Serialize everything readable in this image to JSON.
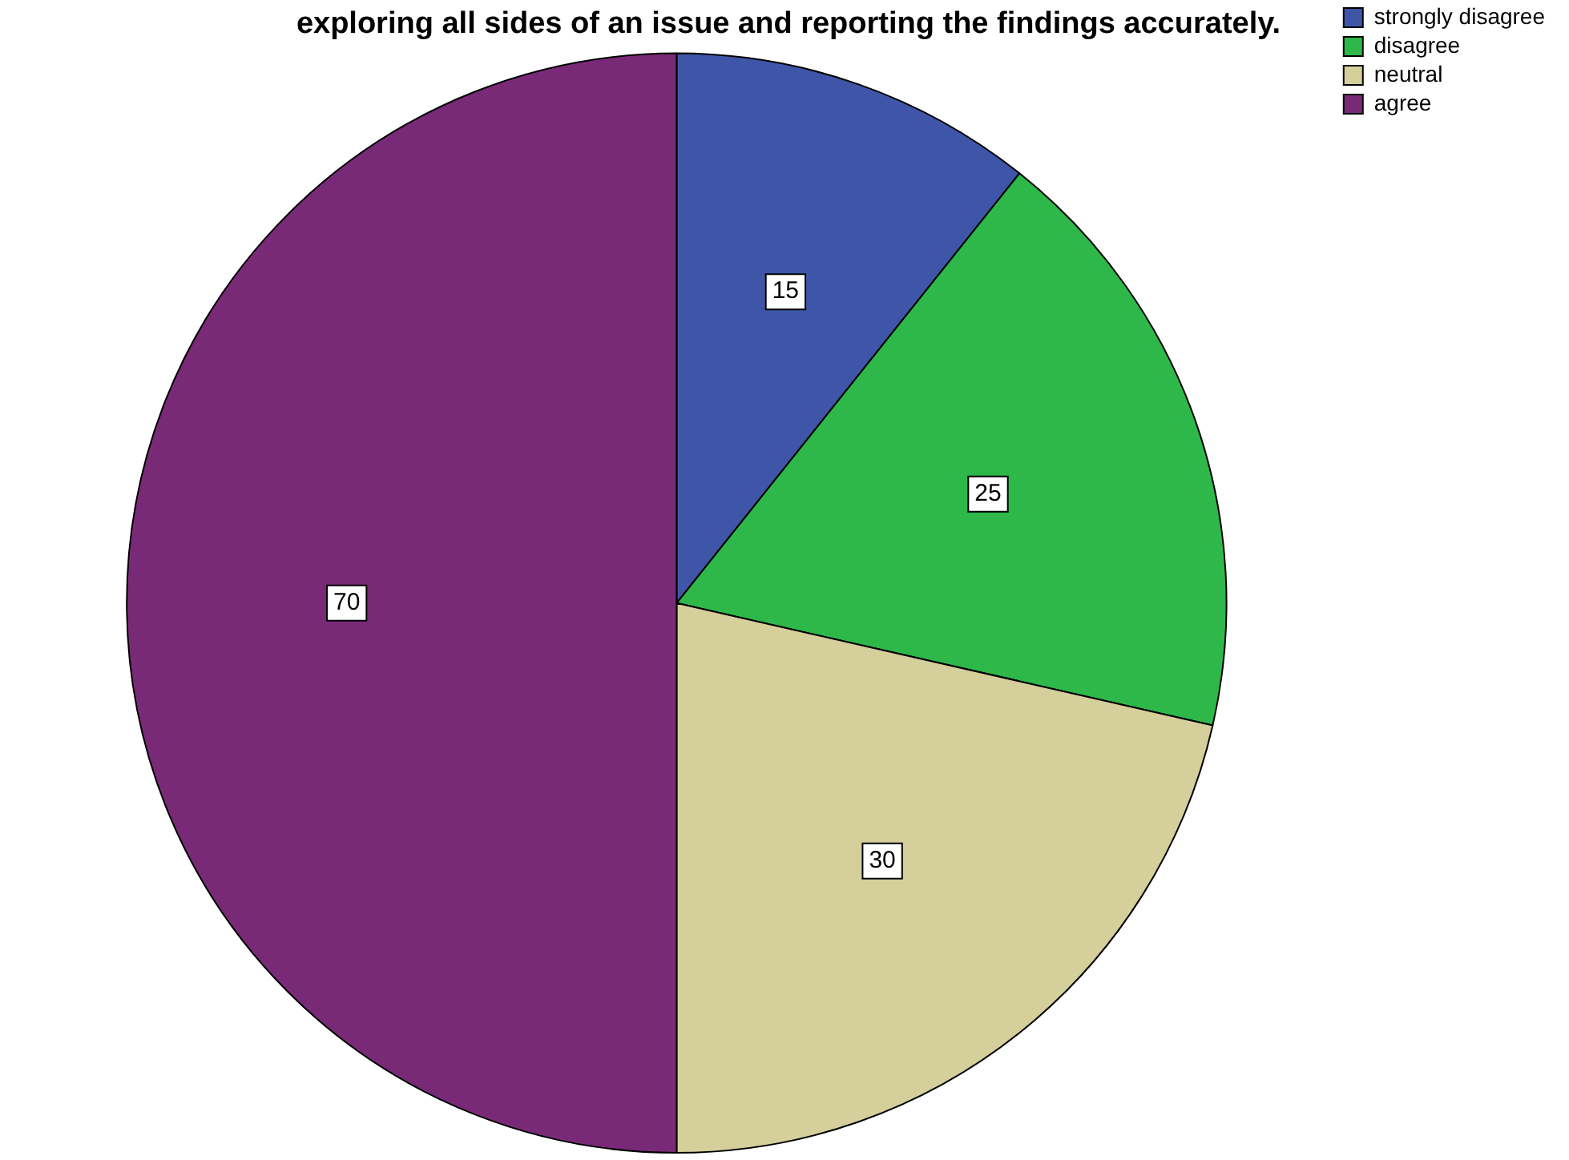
{
  "chart_data": {
    "type": "pie",
    "title": "exploring all sides of an issue and reporting the findings accurately.",
    "categories": [
      "strongly disagree",
      "disagree",
      "neutral",
      "agree"
    ],
    "values": [
      15,
      25,
      30,
      70
    ],
    "colors": [
      "#3f56a8",
      "#2eb84a",
      "#d4cf9b",
      "#792a77"
    ],
    "data_labels": true,
    "legend": "top right"
  }
}
